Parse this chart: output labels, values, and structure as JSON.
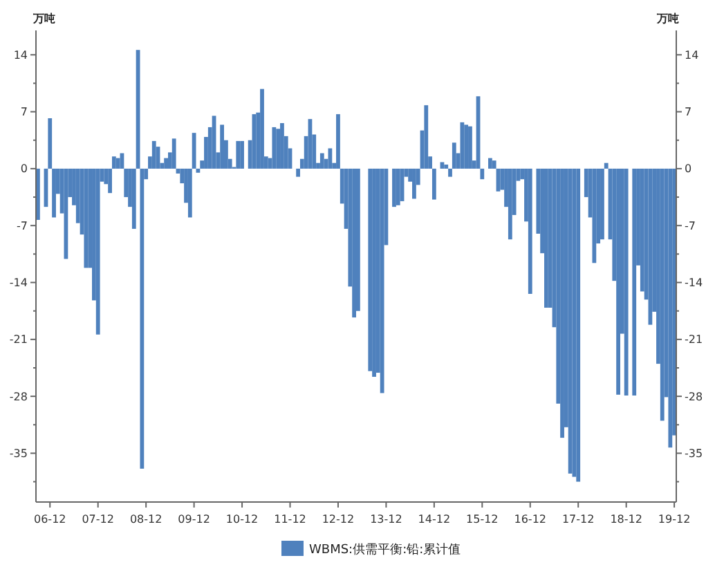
{
  "chart_data": {
    "type": "bar",
    "ylabel": "万吨",
    "y2label": "万吨",
    "categories": [
      null,
      null,
      null,
      "06-12",
      null,
      null,
      null,
      null,
      null,
      null,
      null,
      null,
      null,
      null,
      null,
      "07-12",
      null,
      null,
      null,
      null,
      null,
      null,
      null,
      null,
      null,
      null,
      null,
      "08-12",
      null,
      null,
      null,
      null,
      null,
      null,
      null,
      null,
      null,
      null,
      null,
      "09-12",
      null,
      null,
      null,
      null,
      null,
      null,
      null,
      null,
      null,
      null,
      null,
      "10-12",
      null,
      null,
      null,
      null,
      null,
      null,
      null,
      null,
      null,
      null,
      null,
      "11-12",
      null,
      null,
      null,
      null,
      null,
      null,
      null,
      null,
      null,
      null,
      null,
      "12-12",
      null,
      null,
      null,
      null,
      null,
      null,
      null,
      null,
      null,
      null,
      null,
      "13-12",
      null,
      null,
      null,
      null,
      null,
      null,
      null,
      null,
      null,
      null,
      null,
      "14-12",
      null,
      null,
      null,
      null,
      null,
      null,
      null,
      null,
      null,
      null,
      null,
      "15-12",
      null,
      null,
      null,
      null,
      null,
      null,
      null,
      null,
      null,
      null,
      null,
      "16-12",
      null,
      null,
      null,
      null,
      null,
      null,
      null,
      null,
      null,
      null,
      null,
      "17-12",
      null,
      null,
      null,
      null,
      null,
      null,
      null,
      null,
      null,
      null,
      null,
      "18-12",
      null,
      null,
      null,
      null,
      null,
      null,
      null,
      null,
      null,
      null,
      null,
      "19-12"
    ],
    "series": [
      {
        "name": "WBMS:供需平衡:铅:累计值",
        "color": "#4f81bd",
        "values": [
          -6.3,
          null,
          -4.7,
          6.2,
          -6.0,
          -3.1,
          -5.5,
          -11.1,
          -3.5,
          -4.5,
          -6.7,
          -8.1,
          -12.2,
          -12.2,
          -16.2,
          -20.4,
          -1.6,
          -1.9,
          -3.0,
          1.5,
          1.3,
          1.9,
          -3.5,
          -4.7,
          -7.4,
          14.6,
          -36.9,
          -1.3,
          1.5,
          3.4,
          2.7,
          0.7,
          1.3,
          2.0,
          3.7,
          -0.6,
          -1.8,
          -4.2,
          -6.0,
          4.4,
          -0.5,
          1.0,
          3.9,
          5.1,
          6.5,
          2.0,
          5.4,
          3.5,
          1.2,
          0.2,
          3.4,
          3.4,
          null,
          3.5,
          6.7,
          6.9,
          9.8,
          1.5,
          1.3,
          5.1,
          4.9,
          5.6,
          4.0,
          2.5,
          null,
          -1.0,
          1.2,
          4.0,
          6.1,
          4.2,
          0.7,
          1.9,
          1.2,
          2.5,
          0.7,
          6.7,
          -4.3,
          -7.4,
          -14.5,
          -18.3,
          -17.5,
          null,
          null,
          -24.9,
          -25.6,
          -25.1,
          -27.6,
          -9.4,
          null,
          -4.7,
          -4.5,
          -4.0,
          -1.0,
          -1.6,
          -3.7,
          -2.0,
          4.7,
          7.8,
          1.5,
          -3.8,
          null,
          0.8,
          0.5,
          -1.0,
          3.2,
          1.9,
          5.7,
          5.4,
          5.2,
          1.0,
          8.9,
          -1.3,
          null,
          1.3,
          1.0,
          -2.8,
          -2.6,
          -4.7,
          -8.7,
          -5.7,
          -1.5,
          -1.3,
          -6.5,
          -15.4,
          null,
          -8.0,
          -10.4,
          -17.1,
          -17.1,
          -19.5,
          -28.9,
          -33.1,
          -31.8,
          -37.5,
          -37.9,
          -38.5,
          null,
          -3.5,
          -6.0,
          -11.6,
          -9.2,
          -8.7,
          0.7,
          -8.7,
          -13.8,
          -27.8,
          -20.3,
          -27.9,
          null,
          -27.9,
          -11.9,
          -15.1,
          -16.1,
          -19.2,
          -17.6,
          -24.0,
          -31.0,
          -28.1,
          -34.3,
          -32.8
        ]
      }
    ],
    "ylim": [
      -41,
      17
    ],
    "yticks": [
      14,
      {
        "value": 10.5,
        "label": null
      },
      7,
      {
        "value": 3.5,
        "label": null
      },
      0,
      {
        "value": -3.5,
        "label": null
      },
      -7,
      {
        "value": -10.5,
        "label": null
      },
      -14,
      {
        "value": -17.5,
        "label": null
      },
      -21,
      {
        "value": -24.5,
        "label": null
      },
      -28,
      {
        "value": -31.5,
        "label": null
      },
      -35,
      {
        "value": -38.5,
        "label": null
      }
    ],
    "y2lim": [
      -41,
      17
    ],
    "y2ticks": [
      14,
      {
        "value": 10.5,
        "label": null
      },
      7,
      {
        "value": 3.5,
        "label": null
      },
      0,
      {
        "value": -3.5,
        "label": null
      },
      -7,
      {
        "value": -10.5,
        "label": null
      },
      -14,
      {
        "value": -17.5,
        "label": null
      },
      -21,
      {
        "value": -24.5,
        "label": null
      },
      -28,
      {
        "value": -31.5,
        "label": null
      },
      -35,
      {
        "value": -38.5,
        "label": null
      }
    ],
    "legend": "bottom"
  }
}
